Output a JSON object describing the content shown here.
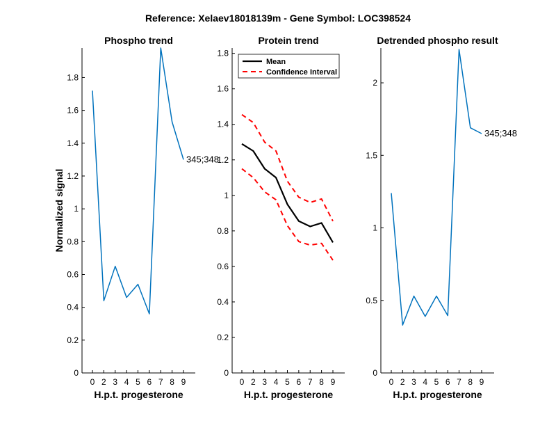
{
  "figure_title": "Reference:  Xelaev18018139m - Gene Symbol:  LOC398524",
  "colors": {
    "series_blue": "#0072BD",
    "mean": "#000000",
    "ci": "#FF0000"
  },
  "chart_data": [
    {
      "type": "line",
      "title": "Phospho trend",
      "xlabel": "H.p.t. progesterone",
      "ylabel": "Normalized signal",
      "x_tick_labels": [
        "0",
        "2",
        "3",
        "4",
        "5",
        "6",
        "7",
        "8",
        "9"
      ],
      "y_ticks": [
        "0",
        "0.2",
        "0.4",
        "0.6",
        "0.8",
        "1",
        "1.2",
        "1.4",
        "1.6",
        "1.8"
      ],
      "ylim": [
        0,
        1.98
      ],
      "series": [
        {
          "label": "345;348",
          "values": [
            1.72,
            0.44,
            0.65,
            0.46,
            0.54,
            0.36,
            1.98,
            1.53,
            1.3
          ]
        }
      ]
    },
    {
      "type": "line",
      "title": "Protein trend",
      "xlabel": "H.p.t. progesterone",
      "x_tick_labels": [
        "0",
        "2",
        "3",
        "4",
        "5",
        "6",
        "7",
        "8",
        "9"
      ],
      "y_ticks": [
        "0",
        "0.2",
        "0.4",
        "0.6",
        "0.8",
        "1",
        "1.2",
        "1.4",
        "1.6",
        "1.8"
      ],
      "ylim": [
        0,
        1.83
      ],
      "legend_position": "top-left",
      "series": [
        {
          "name": "Mean",
          "values": [
            1.29,
            1.25,
            1.15,
            1.1,
            0.95,
            0.855,
            0.825,
            0.845,
            0.735
          ]
        },
        {
          "name": "Confidence Interval",
          "values": [
            1.455,
            1.41,
            1.3,
            1.25,
            1.08,
            0.99,
            0.96,
            0.98,
            0.855
          ]
        },
        {
          "values": [
            1.15,
            1.1,
            1.02,
            0.975,
            0.83,
            0.74,
            0.72,
            0.73,
            0.635
          ]
        }
      ]
    },
    {
      "type": "line",
      "title": "Detrended phospho result",
      "xlabel": "H.p.t. progesterone",
      "x_tick_labels": [
        "0",
        "2",
        "3",
        "4",
        "5",
        "6",
        "7",
        "8",
        "9"
      ],
      "y_ticks": [
        "0",
        "0.5",
        "1",
        "1.5",
        "2"
      ],
      "ylim": [
        0,
        2.24
      ],
      "series": [
        {
          "label": "345;348",
          "values": [
            1.24,
            0.33,
            0.53,
            0.39,
            0.53,
            0.395,
            2.23,
            1.69,
            1.65
          ]
        }
      ]
    }
  ]
}
